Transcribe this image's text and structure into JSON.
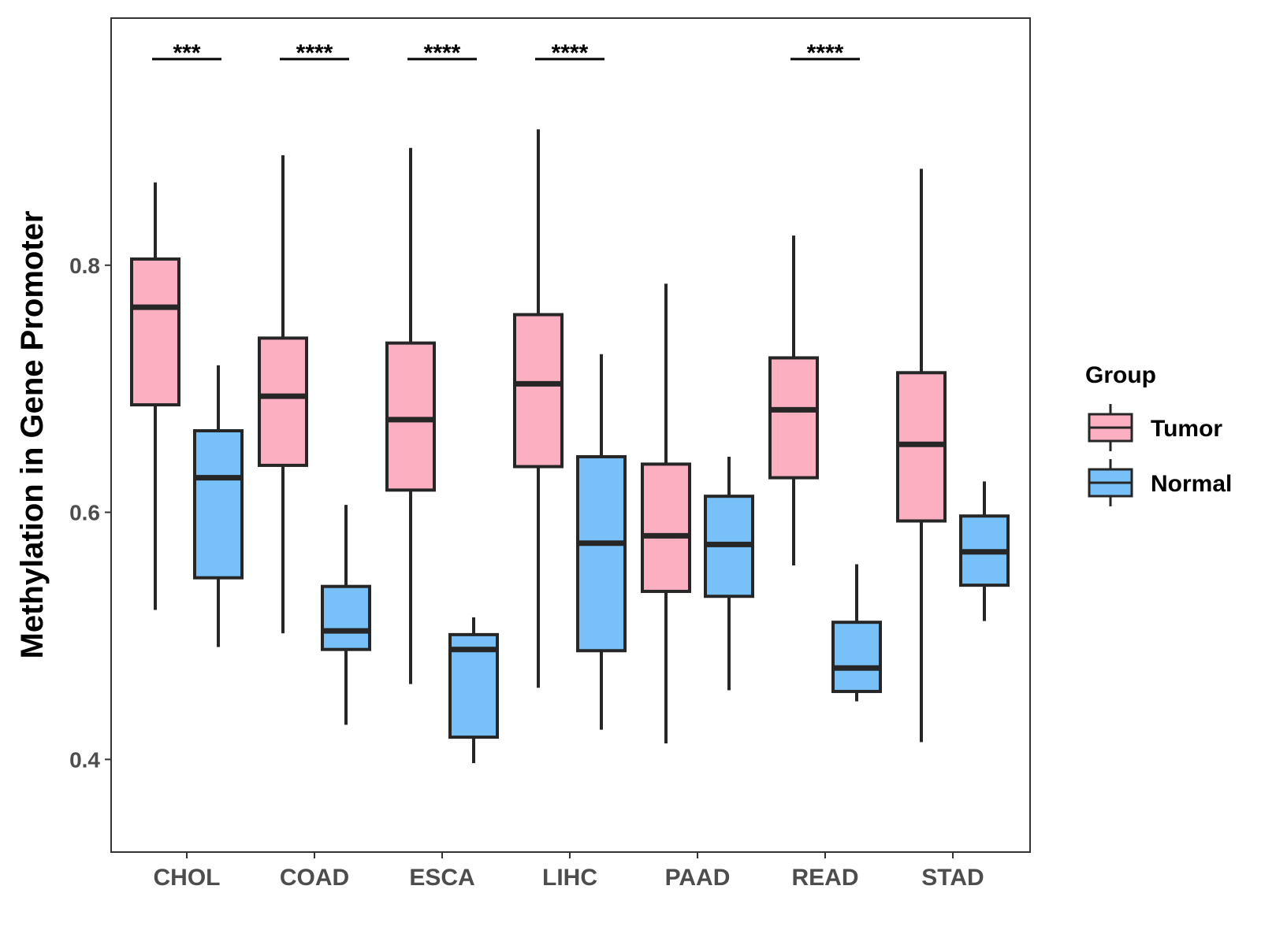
{
  "chart_data": {
    "type": "boxplot",
    "ylabel": "Methylation in Gene Promoter",
    "xlabel": "",
    "ylim": [
      0.325,
      1.0
    ],
    "yticks": [
      0.4,
      0.6,
      0.8
    ],
    "ytick_labels": [
      "0.4",
      "0.6",
      "0.8"
    ],
    "categories": [
      "CHOL",
      "COAD",
      "ESCA",
      "LIHC",
      "PAAD",
      "READ",
      "STAD"
    ],
    "legend": {
      "title": "Group",
      "position": "right",
      "entries": [
        {
          "name": "Tumor",
          "color": "#fbafc1"
        },
        {
          "name": "Normal",
          "color": "#78c0f8"
        }
      ]
    },
    "series": [
      {
        "name": "Tumor",
        "color": "#fbafc1",
        "boxes": [
          {
            "whisker_low": 0.521,
            "q1": 0.687,
            "median": 0.766,
            "q3": 0.805,
            "whisker_high": 0.867
          },
          {
            "whisker_low": 0.502,
            "q1": 0.638,
            "median": 0.694,
            "q3": 0.741,
            "whisker_high": 0.889
          },
          {
            "whisker_low": 0.461,
            "q1": 0.618,
            "median": 0.675,
            "q3": 0.737,
            "whisker_high": 0.895
          },
          {
            "whisker_low": 0.458,
            "q1": 0.637,
            "median": 0.704,
            "q3": 0.76,
            "whisker_high": 0.91
          },
          {
            "whisker_low": 0.413,
            "q1": 0.536,
            "median": 0.581,
            "q3": 0.639,
            "whisker_high": 0.785
          },
          {
            "whisker_low": 0.557,
            "q1": 0.628,
            "median": 0.683,
            "q3": 0.725,
            "whisker_high": 0.824
          },
          {
            "whisker_low": 0.414,
            "q1": 0.593,
            "median": 0.655,
            "q3": 0.713,
            "whisker_high": 0.878
          }
        ]
      },
      {
        "name": "Normal",
        "color": "#78c0f8",
        "boxes": [
          {
            "whisker_low": 0.491,
            "q1": 0.547,
            "median": 0.628,
            "q3": 0.666,
            "whisker_high": 0.719
          },
          {
            "whisker_low": 0.428,
            "q1": 0.489,
            "median": 0.504,
            "q3": 0.54,
            "whisker_high": 0.606
          },
          {
            "whisker_low": 0.397,
            "q1": 0.418,
            "median": 0.489,
            "q3": 0.501,
            "whisker_high": 0.515
          },
          {
            "whisker_low": 0.424,
            "q1": 0.488,
            "median": 0.575,
            "q3": 0.645,
            "whisker_high": 0.728
          },
          {
            "whisker_low": 0.456,
            "q1": 0.532,
            "median": 0.574,
            "q3": 0.613,
            "whisker_high": 0.645
          },
          {
            "whisker_low": 0.447,
            "q1": 0.455,
            "median": 0.474,
            "q3": 0.511,
            "whisker_high": 0.558
          },
          {
            "whisker_low": 0.512,
            "q1": 0.541,
            "median": 0.568,
            "q3": 0.597,
            "whisker_high": 0.625
          }
        ]
      }
    ],
    "significance": [
      {
        "category": "CHOL",
        "label": "***"
      },
      {
        "category": "COAD",
        "label": "****"
      },
      {
        "category": "ESCA",
        "label": "****"
      },
      {
        "category": "LIHC",
        "label": "****"
      },
      {
        "category": "READ",
        "label": "****"
      }
    ],
    "style": {
      "outline_color": "#262626",
      "panel_border_color": "#333333",
      "tick_label_color": "#4d4d4d"
    }
  }
}
